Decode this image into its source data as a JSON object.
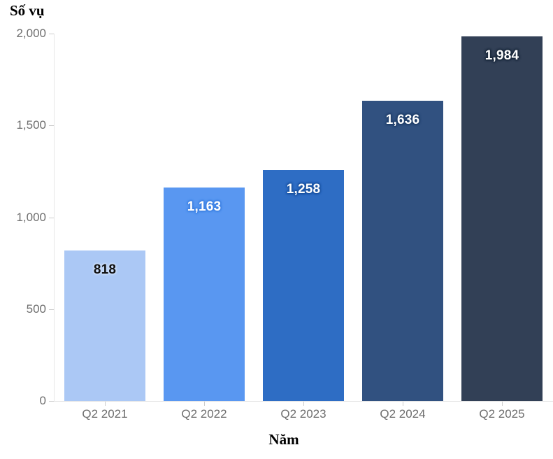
{
  "title": "Số vụ",
  "xlabel": "Năm",
  "chart_data": {
    "type": "bar",
    "title": "Số vụ",
    "xlabel": "Năm",
    "ylabel": "Số vụ",
    "categories": [
      "Q2 2021",
      "Q2 2022",
      "Q2 2023",
      "Q2 2024",
      "Q2 2025"
    ],
    "values": [
      818,
      1163,
      1258,
      1636,
      1984
    ],
    "value_labels": [
      "818",
      "1,163",
      "1,258",
      "1,636",
      "1,984"
    ],
    "ylim": [
      0,
      2000
    ],
    "yticks": [
      0,
      500,
      1000,
      1500,
      2000
    ],
    "ytick_labels": [
      "0",
      "500",
      "1,000",
      "1,500",
      "2,000"
    ],
    "grid": false,
    "legend": null,
    "bar_colors": [
      "#abc8f5",
      "#5997f1",
      "#2e6dc4",
      "#315180",
      "#324056"
    ],
    "value_label_colors": [
      "#111111",
      "#ffffff",
      "#ffffff",
      "#ffffff",
      "#ffffff"
    ],
    "value_label_halo_colors": [
      "#c9dcf9",
      "#3f82e3",
      "#1c55a3",
      "#23406b",
      "#1b2a3d"
    ],
    "axis_text_color": "#6e6e6e"
  }
}
